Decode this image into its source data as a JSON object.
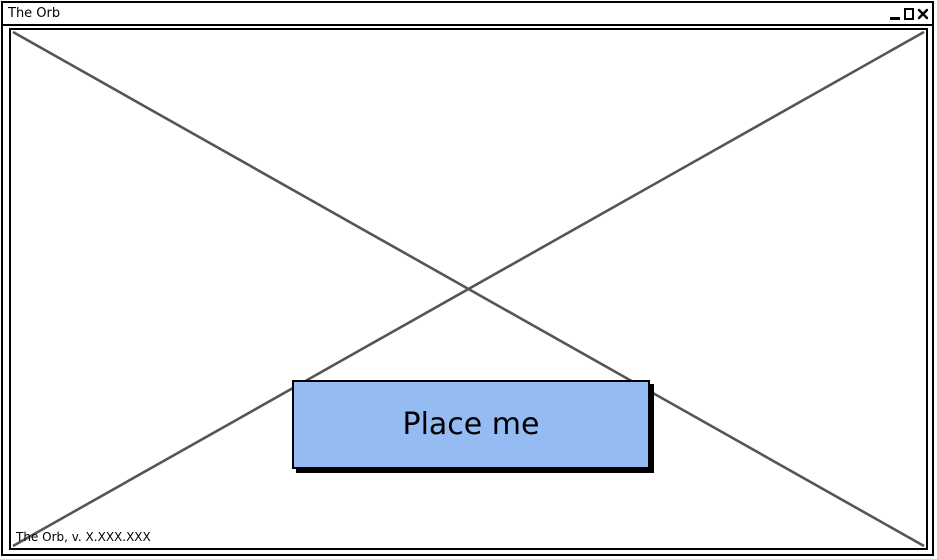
{
  "window": {
    "title": "The Orb",
    "controls": [
      "minimize-icon",
      "maximize-icon",
      "close-icon"
    ]
  },
  "content": {
    "placeholder": "image-placeholder",
    "button_label": "Place me",
    "version_text": "The Orb, v. X.XXX.XXX"
  },
  "colors": {
    "button_fill": "#94bbf2",
    "cross_stroke": "#555555",
    "border": "#000000"
  }
}
